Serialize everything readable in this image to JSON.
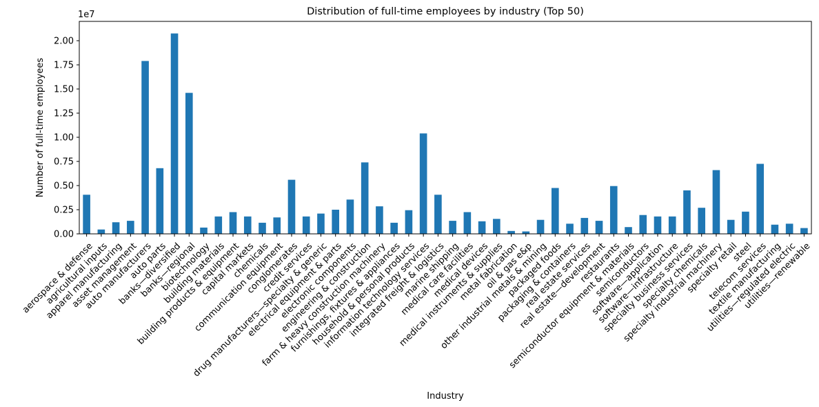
{
  "chart_data": {
    "type": "bar",
    "title": "Distribution of full-time employees by industry (Top 50)",
    "xlabel": "Industry",
    "ylabel": "Number of full-time employees",
    "y_offset_label": "1e7",
    "bar_color": "#1f77b4",
    "ylim": [
      0,
      22000000
    ],
    "yticks": [
      0,
      2500000,
      5000000,
      7500000,
      10000000,
      12500000,
      15000000,
      17500000,
      20000000
    ],
    "ytick_labels": [
      "0.00",
      "0.25",
      "0.50",
      "0.75",
      "1.00",
      "1.25",
      "1.50",
      "1.75",
      "2.00"
    ],
    "grid": false,
    "categories": [
      "aerospace & defense",
      "agricultural inputs",
      "apparel manufacturing",
      "asset management",
      "auto manufacturers",
      "auto parts",
      "banks—diversified",
      "banks—regional",
      "biotechnology",
      "building materials",
      "building products & equipment",
      "capital markets",
      "chemicals",
      "communication equipment",
      "conglomerates",
      "credit services",
      "drug manufacturers—specialty & generic",
      "electrical equipment & parts",
      "electronic components",
      "engineering & construction",
      "farm & heavy construction machinery",
      "furnishings, fixtures & appliances",
      "household & personal products",
      "information technology services",
      "integrated freight & logistics",
      "marine shipping",
      "medical care facilities",
      "medical devices",
      "medical instruments & supplies",
      "metal fabrication",
      "oil & gas e&p",
      "other industrial metals & mining",
      "packaged foods",
      "packaging & containers",
      "real estate services",
      "real estate—development",
      "restaurants",
      "semiconductor equipment & materials",
      "semiconductors",
      "software—application",
      "software—infrastructure",
      "specialty business services",
      "specialty chemicals",
      "specialty industrial machinery",
      "specialty retail",
      "steel",
      "telecom services",
      "textile manufacturing",
      "utilities—regulated electric",
      "utilities—renewable"
    ],
    "values": [
      4050000,
      450000,
      1200000,
      1350000,
      17900000,
      6800000,
      20750000,
      14600000,
      650000,
      1800000,
      2250000,
      1800000,
      1150000,
      1700000,
      5600000,
      1800000,
      2100000,
      2500000,
      3550000,
      7400000,
      2850000,
      1150000,
      2450000,
      10400000,
      4050000,
      1350000,
      2250000,
      1300000,
      1550000,
      300000,
      250000,
      1450000,
      4750000,
      1050000,
      1650000,
      1350000,
      4950000,
      700000,
      1950000,
      1800000,
      1800000,
      4500000,
      2700000,
      6600000,
      1450000,
      2300000,
      7250000,
      950000,
      1050000,
      600000
    ]
  }
}
